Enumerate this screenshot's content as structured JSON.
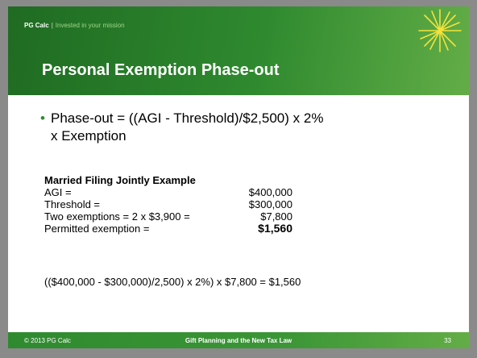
{
  "header": {
    "brand": "PG Calc",
    "separator": "|",
    "tagline": "Invested in your mission"
  },
  "title": "Personal Exemption Phase-out",
  "bullet": {
    "lines": [
      "Phase-out = ((AGI - Threshold)/$2,500) x 2%",
      "x Exemption"
    ]
  },
  "example": {
    "heading": "Married Filing Jointly Example",
    "rows": [
      {
        "label": "AGI =",
        "value": "$400,000"
      },
      {
        "label": "Threshold =",
        "value": "$300,000"
      },
      {
        "label": "Two exemptions = 2 x $3,900 =",
        "value": "$7,800"
      },
      {
        "label": "Permitted exemption =",
        "value": "$1,560"
      }
    ],
    "formula": "(($400,000 - $300,000)/2,500) x 2%) x $7,800 = $1,560"
  },
  "footer": {
    "copyright": "© 2013 PG Calc",
    "title": "Gift Planning and the New Tax Law",
    "page": "33"
  }
}
